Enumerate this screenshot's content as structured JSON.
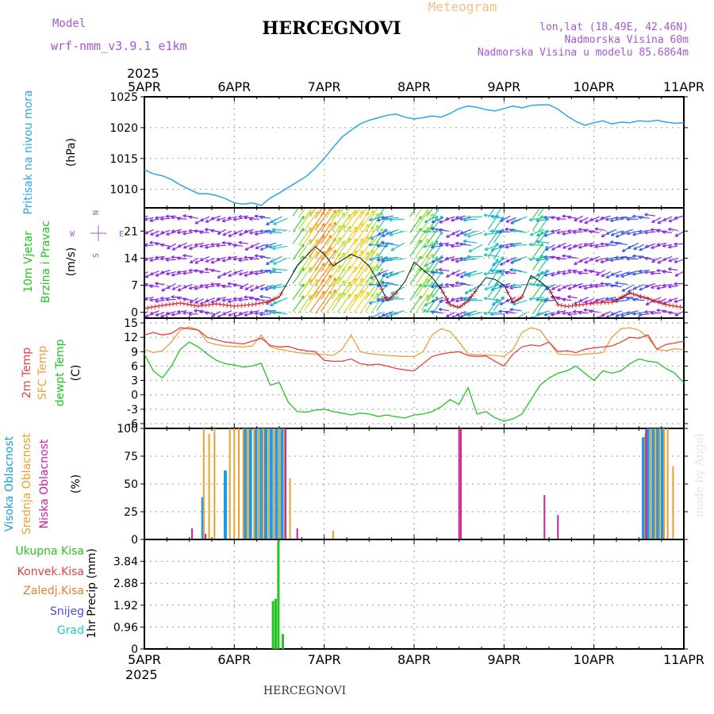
{
  "header": {
    "model_label": "Model",
    "model_name": "wrf-nmm_v3.9.1 e1km",
    "title": "HERCEGNOVI",
    "meteogram": "Meteogram",
    "lonlat": "lon,lat (18.49E, 42.46N)",
    "elevation": "Nadmorska Visina 60m",
    "model_elevation": "Nadmorska Visina u modelu 85.6864m",
    "footer": "HERCEGNOVI",
    "credit": "made by Angel"
  },
  "time_axis": {
    "year": "2025",
    "days": [
      "5APR",
      "6APR",
      "7APR",
      "8APR",
      "9APR",
      "10APR",
      "11APR"
    ]
  },
  "colors": {
    "pressure": "#2aa7e6",
    "temp2m": "#e8403a",
    "sfctemp": "#e8a040",
    "dewpt": "#22c422",
    "high_cloud": "#1a9ae8",
    "mid_cloud": "#e8a030",
    "low_cloud": "#c8209a",
    "total_precip": "#22c422",
    "conv_precip": "#e8403a",
    "frozen_precip": "#e88030",
    "snow": "#4a4ae8",
    "hail": "#20c8c8",
    "model_label": "#a855d8"
  },
  "chart_data": [
    {
      "type": "line",
      "panel": "pressure",
      "ylabel": [
        "Pritisak na nivou mora",
        "(hPa)"
      ],
      "ylim": [
        1007,
        1025
      ],
      "yticks": [
        1010,
        1015,
        1020,
        1025
      ],
      "grid": true,
      "series": [
        {
          "x": [
            0,
            0.1,
            0.2,
            0.3,
            0.4,
            0.5,
            0.6,
            0.7,
            0.8,
            0.9,
            1,
            1.1,
            1.2,
            1.3,
            1.35,
            1.4,
            1.5,
            1.6,
            1.7,
            1.8,
            1.9,
            2,
            2.1,
            2.2,
            2.3,
            2.4,
            2.5,
            2.6,
            2.7,
            2.8,
            2.9,
            3,
            3.1,
            3.2,
            3.3,
            3.4,
            3.5,
            3.6,
            3.7,
            3.8,
            3.9,
            4,
            4.1,
            4.2,
            4.3,
            4.4,
            4.5,
            4.6,
            4.7,
            4.8,
            4.9,
            5,
            5.1,
            5.2,
            5.3,
            5.4,
            5.5,
            5.6,
            5.7,
            5.8,
            5.9,
            6
          ],
          "y": [
            1013.2,
            1012.5,
            1012.2,
            1011.6,
            1010.7,
            1010,
            1009.3,
            1009.3,
            1009,
            1008.5,
            1007.8,
            1007.6,
            1007.8,
            1007.4,
            1008,
            1008.6,
            1009.4,
            1010.3,
            1011.2,
            1012.1,
            1013.4,
            1015,
            1016.8,
            1018.5,
            1019.6,
            1020.6,
            1021.2,
            1021.6,
            1022,
            1022.2,
            1021.7,
            1021.4,
            1021.6,
            1021.9,
            1021.7,
            1022.3,
            1023.1,
            1023.5,
            1023.3,
            1022.9,
            1022.7,
            1023.1,
            1023.5,
            1023.2,
            1023.6,
            1023.7,
            1023.7,
            1023,
            1021.9,
            1021,
            1020.4,
            1020.8,
            1021.1,
            1020.6,
            1020.9,
            1020.8,
            1021.1,
            1021,
            1021.2,
            1020.9,
            1020.7,
            1020.8
          ]
        }
      ]
    },
    {
      "type": "line",
      "panel": "wind",
      "ylabel": [
        "10m Vjetar",
        "Brzina i Pravac",
        "(m/s)"
      ],
      "compass": {
        "n": "N",
        "w": "W",
        "e": "E",
        "s": "S"
      },
      "ylim": [
        -1.5,
        27
      ],
      "yticks": [
        0,
        7,
        14,
        21
      ],
      "grid": true,
      "series": [
        {
          "x": [
            0,
            0.2,
            0.4,
            0.6,
            0.8,
            1,
            1.2,
            1.35,
            1.5,
            1.6,
            1.7,
            1.8,
            1.9,
            2,
            2.1,
            2.2,
            2.3,
            2.4,
            2.5,
            2.6,
            2.7,
            2.8,
            2.9,
            3,
            3.1,
            3.2,
            3.3,
            3.4,
            3.5,
            3.6,
            3.7,
            3.8,
            3.9,
            4,
            4.1,
            4.2,
            4.3,
            4.4,
            4.5,
            4.6,
            4.7,
            4.8,
            5,
            5.2,
            5.4,
            5.6,
            5.8,
            6
          ],
          "y": [
            1,
            1.8,
            2.4,
            1.6,
            2.2,
            1.6,
            2,
            2.6,
            4,
            8,
            12,
            14.5,
            17,
            15,
            12,
            13.5,
            15,
            14,
            12,
            8,
            3,
            5,
            8,
            13,
            11,
            9,
            6,
            2,
            1.2,
            3,
            6,
            9,
            8.5,
            7,
            2.5,
            4,
            9.5,
            8,
            6,
            2,
            1.5,
            1.8,
            2.4,
            2.6,
            5,
            3.5,
            2,
            1.2
          ]
        }
      ]
    },
    {
      "type": "line",
      "panel": "temperature",
      "ylabel": [
        "2m Temp",
        "SFC Temp",
        "dewpt Temp",
        "(C)"
      ],
      "ylim": [
        -7,
        16
      ],
      "yticks": [
        -6,
        -3,
        0,
        3,
        6,
        9,
        12,
        15
      ],
      "grid": true,
      "series": [
        {
          "name": "2m Temp",
          "x": [
            0,
            0.1,
            0.2,
            0.3,
            0.4,
            0.5,
            0.6,
            0.7,
            0.8,
            0.9,
            1,
            1.1,
            1.2,
            1.3,
            1.4,
            1.5,
            1.6,
            1.7,
            1.8,
            1.9,
            2,
            2.1,
            2.2,
            2.3,
            2.4,
            2.5,
            2.6,
            2.7,
            2.8,
            2.9,
            3,
            3.1,
            3.2,
            3.3,
            3.4,
            3.5,
            3.6,
            3.7,
            3.8,
            3.9,
            4,
            4.1,
            4.2,
            4.3,
            4.4,
            4.5,
            4.6,
            4.7,
            4.8,
            4.9,
            5,
            5.1,
            5.2,
            5.3,
            5.4,
            5.5,
            5.6,
            5.7,
            5.8,
            5.9,
            6
          ],
          "y": [
            12.5,
            13,
            12.5,
            12.8,
            14,
            13.8,
            13.5,
            12,
            11.5,
            11,
            10.8,
            10.6,
            11.2,
            11.8,
            10.3,
            10,
            10.1,
            9.5,
            9.2,
            9,
            7.2,
            7,
            7,
            7.5,
            6.5,
            6.2,
            6.4,
            6,
            5.5,
            5.2,
            5,
            6.5,
            8,
            8.5,
            8.8,
            9,
            8.2,
            8,
            8.1,
            7,
            6,
            8.5,
            10,
            10.4,
            10.2,
            11,
            9,
            9.2,
            8.8,
            9.5,
            9.8,
            10,
            10.2,
            11,
            12,
            11.8,
            12.5,
            9.5,
            10.5,
            10.8,
            11.2
          ]
        },
        {
          "name": "SFC Temp",
          "x": [
            0,
            0.1,
            0.2,
            0.3,
            0.4,
            0.5,
            0.6,
            0.7,
            0.8,
            0.9,
            1,
            1.1,
            1.2,
            1.3,
            1.4,
            1.5,
            1.6,
            1.7,
            1.8,
            1.9,
            2,
            2.1,
            2.2,
            2.3,
            2.4,
            2.5,
            2.6,
            2.7,
            2.8,
            2.9,
            3,
            3.1,
            3.2,
            3.3,
            3.4,
            3.5,
            3.6,
            3.7,
            3.8,
            3.9,
            4,
            4.1,
            4.2,
            4.3,
            4.4,
            4.5,
            4.6,
            4.7,
            4.8,
            4.9,
            5,
            5.1,
            5.2,
            5.3,
            5.4,
            5.5,
            5.6,
            5.7,
            5.8,
            5.9,
            6
          ],
          "y": [
            9.5,
            8.8,
            9.2,
            11,
            13.5,
            14.2,
            13.5,
            11,
            10.5,
            10.2,
            10.1,
            10,
            10.2,
            12.5,
            10,
            9.5,
            9.2,
            8.8,
            8.6,
            8.5,
            8.4,
            8.2,
            9.5,
            12.5,
            9,
            8.6,
            8.4,
            8.2,
            8.1,
            8,
            8,
            9,
            12.5,
            13.8,
            13.2,
            11,
            8.5,
            8.4,
            8.3,
            8.2,
            8,
            9.5,
            13,
            14,
            13.5,
            11,
            8.5,
            8.4,
            8.3,
            8.5,
            8.6,
            8.8,
            12,
            13.8,
            14,
            13.5,
            12,
            9.5,
            9.2,
            9.6,
            9.4
          ]
        },
        {
          "name": "dewpt Temp",
          "x": [
            0,
            0.1,
            0.2,
            0.3,
            0.4,
            0.5,
            0.6,
            0.7,
            0.8,
            0.9,
            1,
            1.1,
            1.2,
            1.3,
            1.4,
            1.5,
            1.6,
            1.7,
            1.8,
            1.9,
            2,
            2.1,
            2.2,
            2.3,
            2.4,
            2.5,
            2.6,
            2.7,
            2.8,
            2.9,
            3,
            3.1,
            3.2,
            3.3,
            3.4,
            3.5,
            3.6,
            3.7,
            3.8,
            3.9,
            4,
            4.1,
            4.2,
            4.3,
            4.4,
            4.5,
            4.6,
            4.7,
            4.8,
            4.9,
            5,
            5.1,
            5.2,
            5.3,
            5.4,
            5.5,
            5.6,
            5.7,
            5.8,
            5.9,
            6
          ],
          "y": [
            8.5,
            5,
            3.5,
            6,
            9.5,
            11,
            10,
            8.5,
            7.2,
            6.5,
            6.2,
            5.8,
            6,
            6.6,
            2,
            2.6,
            -1.5,
            -3.5,
            -3.6,
            -3.2,
            -3,
            -3.5,
            -3.8,
            -4.2,
            -3.8,
            -4,
            -4.5,
            -4.2,
            -4.6,
            -4.8,
            -4.2,
            -4,
            -3.5,
            -2.5,
            -1,
            -2,
            1.5,
            -4,
            -3.5,
            -4.8,
            -5.5,
            -5,
            -4,
            -1,
            2,
            3.5,
            4.5,
            5,
            6,
            4.5,
            3,
            5,
            4.5,
            5,
            6.5,
            7.5,
            7,
            6.8,
            5.5,
            4.5,
            2.5
          ]
        }
      ]
    },
    {
      "type": "bar",
      "panel": "clouds",
      "ylabel": [
        "Visoka Oblacnost",
        "Srednja Oblacnost",
        "Niska Oblacnost",
        "(%)"
      ],
      "ylim": [
        0,
        100
      ],
      "yticks": [
        0,
        25,
        50,
        75,
        100
      ],
      "grid": true,
      "series": [
        {
          "name": "Visoka Oblacnost",
          "x": [
            0.65,
            0.9,
            1.12,
            1.18,
            1.24,
            1.3,
            1.35,
            1.41,
            1.47,
            1.53,
            5.55,
            5.6,
            5.66,
            5.71,
            5.76
          ],
          "values": [
            38,
            62,
            100,
            100,
            100,
            100,
            100,
            100,
            100,
            100,
            92,
            100,
            100,
            100,
            100
          ]
        },
        {
          "name": "Srednja Oblacnost",
          "x": [
            0.66,
            0.72,
            0.78,
            0.95,
            1.0,
            1.05,
            1.1,
            1.15,
            1.22,
            1.27,
            1.32,
            1.38,
            1.44,
            1.5,
            1.56,
            1.62,
            2.1,
            5.57,
            5.63,
            5.68,
            5.73,
            5.78,
            5.82,
            5.88
          ],
          "values": [
            100,
            95,
            100,
            100,
            100,
            100,
            100,
            100,
            100,
            100,
            100,
            100,
            100,
            100,
            100,
            55,
            8,
            95,
            100,
            100,
            100,
            100,
            100,
            66
          ]
        },
        {
          "name": "Niska Oblacnost",
          "x": [
            0.53,
            0.68,
            1.57,
            1.7,
            3.5,
            3.52,
            4.45,
            4.6,
            5.58
          ],
          "values": [
            10,
            5,
            100,
            10,
            100,
            100,
            40,
            22,
            100
          ]
        }
      ]
    },
    {
      "type": "bar",
      "panel": "precip",
      "ylabel": [
        "Ukupna Kisa",
        "Konvek.Kisa",
        "Zaledj.Kisa",
        "Snijeg",
        "Grad",
        "1hr Precip (mm)"
      ],
      "ylim": [
        0,
        4.8
      ],
      "yticks": [
        0,
        0.96,
        1.92,
        2.88,
        3.84
      ],
      "grid": true,
      "series": [
        {
          "name": "Ukupna Kisa",
          "x": [
            1.43,
            1.46,
            1.49,
            1.54
          ],
          "values": [
            2.1,
            2.2,
            4.75,
            0.65
          ]
        }
      ]
    }
  ]
}
